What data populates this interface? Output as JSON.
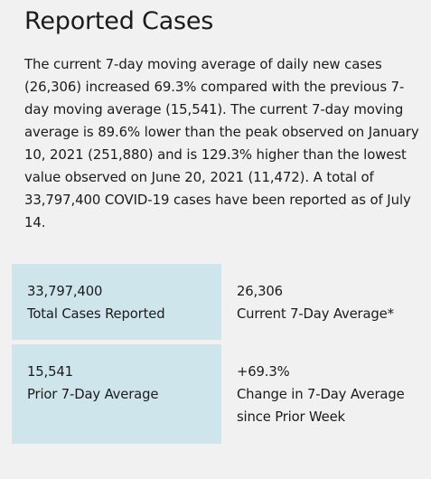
{
  "section": {
    "title": "Reported Cases",
    "summary": "The current 7-day moving average of daily new cases (26,306) increased 69.3% compared with the previous 7-day moving average (15,541). The current 7-day moving average is 89.6% lower than the peak observed on January 10, 2021 (251,880) and is 129.3% higher than the lowest value observed on June 20, 2021 (11,472). A total of 33,797,400 COVID-19 cases have been reported as of July 14."
  },
  "stats": {
    "total_cases": {
      "value": "33,797,400",
      "label": "Total Cases Reported"
    },
    "current_average": {
      "value": "26,306",
      "label": "Current 7-Day Average*"
    },
    "prior_average": {
      "value": "15,541",
      "label": "Prior 7-Day Average"
    },
    "change": {
      "value": "+69.3%",
      "label": "Change in 7-Day Average since Prior Week"
    }
  },
  "colors": {
    "page_background": "#f1f1f1",
    "stat_box_background": "#cfe5ec",
    "text": "#1b1b1b"
  }
}
